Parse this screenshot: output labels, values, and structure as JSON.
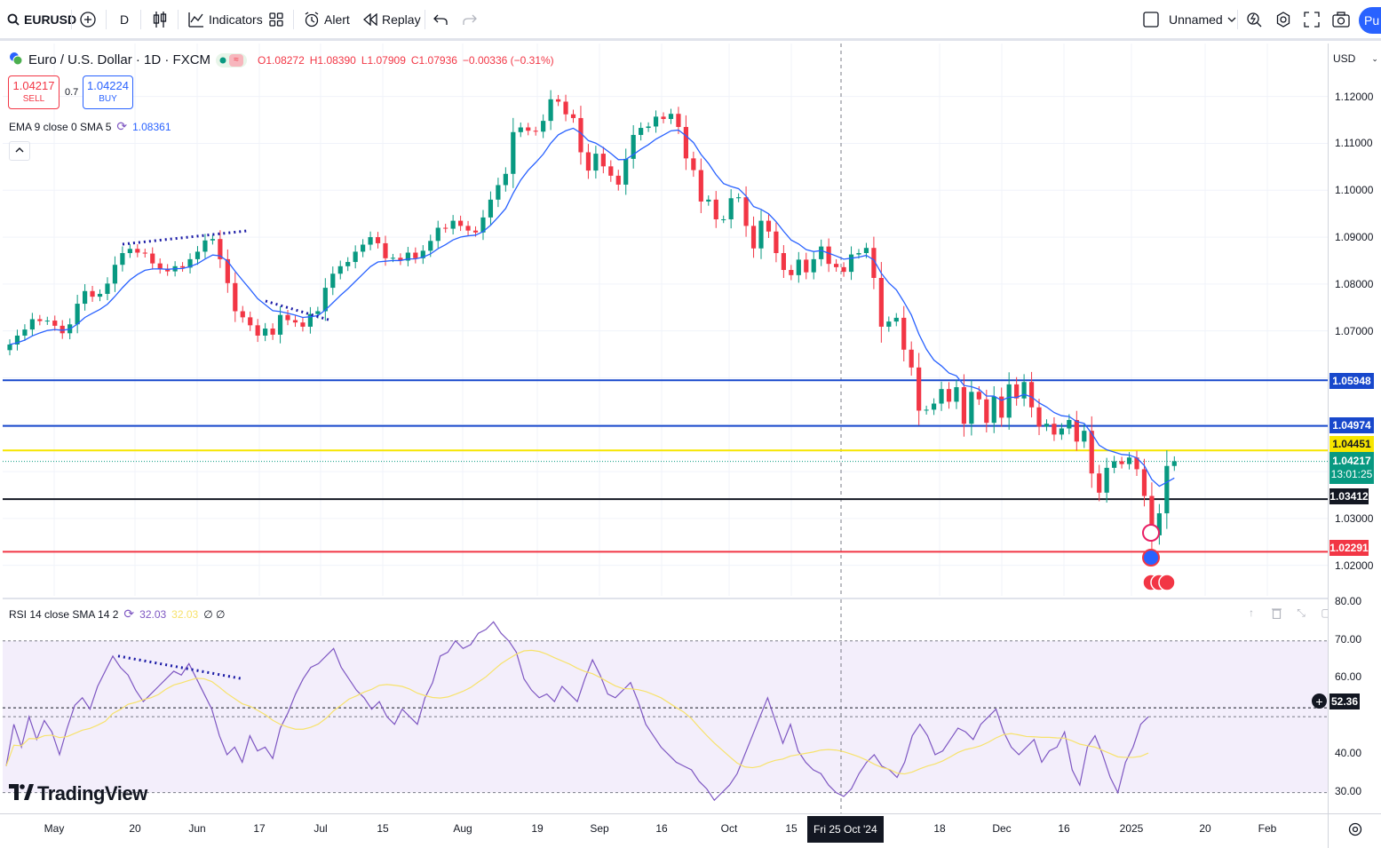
{
  "toolbar": {
    "symbol": "EURUSD",
    "interval": "D",
    "indicators_label": "Indicators",
    "alert_label": "Alert",
    "replay_label": "Replay",
    "layout_name": "Unnamed",
    "publish_label": "Pu"
  },
  "legend": {
    "title": "Euro / U.S. Dollar · 1D · FXCM",
    "open": "O1.08272",
    "high": "H1.08390",
    "low": "L1.07909",
    "close": "C1.07936",
    "change": "−0.00336 (−0.31%)",
    "sell_price": "1.04217",
    "sell_label": "SELL",
    "spread": "0.7",
    "buy_price": "1.04224",
    "buy_label": "BUY",
    "ema_label": "EMA 9 close 0 SMA 5",
    "ema_value": "1.08361",
    "rsi_label": "RSI 14 close SMA 14 2",
    "rsi_value": "32.03",
    "rsi_sma_value": "32.03",
    "rsi_extra": "∅ ∅"
  },
  "currency": "USD",
  "price_axis_labels": [
    "1.12000",
    "1.11000",
    "1.10000",
    "1.09000",
    "1.08000",
    "1.07000",
    "1.03000",
    "1.02000"
  ],
  "rsi_axis_labels": [
    "80.00",
    "70.00",
    "60.00",
    "40.00",
    "30.00"
  ],
  "price_tags": {
    "level1": "1.05948",
    "level2": "1.04974",
    "level3": "1.04451",
    "current": "1.04217",
    "countdown": "13:01:25",
    "level4": "1.03412",
    "level5": "1.02291",
    "rsi_crosshair": "52.36"
  },
  "time_axis": [
    "May",
    "20",
    "Jun",
    "17",
    "Jul",
    "15",
    "Aug",
    "19",
    "Sep",
    "16",
    "Oct",
    "15",
    "18",
    "Dec",
    "16",
    "2025",
    "20",
    "Feb"
  ],
  "crosshair_date": "Fri 25 Oct '24",
  "brand": "TradingView",
  "colors": {
    "up": "#089981",
    "down": "#f23645",
    "ema": "#2962ff",
    "rsi": "#7e57c2",
    "rsi_sma": "#f7e26b",
    "line_blue": "#1848cc",
    "line_yellow": "#f7e600",
    "line_black": "#131722",
    "line_red": "#f23645"
  },
  "chart_data": {
    "type": "candlestick",
    "ylim": [
      1.0135,
      1.1313
    ],
    "levels": [
      1.05948,
      1.04974,
      1.04451,
      1.03412,
      1.02291
    ],
    "close": [
      1.0671,
      1.069,
      1.0703,
      1.0725,
      1.0721,
      1.0722,
      1.0711,
      1.0695,
      1.0714,
      1.0758,
      1.0785,
      1.0773,
      1.0779,
      1.0801,
      1.0841,
      1.0866,
      1.0875,
      1.0867,
      1.0865,
      1.0844,
      1.0833,
      1.0827,
      1.0838,
      1.0835,
      1.0853,
      1.0869,
      1.0893,
      1.0896,
      1.0853,
      1.0802,
      1.0742,
      1.0729,
      1.0712,
      1.069,
      1.0705,
      1.0692,
      1.0734,
      1.0723,
      1.0718,
      1.0709,
      1.0736,
      1.0742,
      1.0792,
      1.0822,
      1.0838,
      1.0847,
      1.0869,
      1.0884,
      1.09,
      1.0887,
      1.0855,
      1.0856,
      1.085,
      1.0867,
      1.0855,
      1.0871,
      1.0892,
      1.092,
      1.0918,
      1.0935,
      1.0924,
      1.0914,
      1.091,
      1.0942,
      1.098,
      1.1011,
      1.1035,
      1.1124,
      1.1134,
      1.1127,
      1.1125,
      1.1148,
      1.1194,
      1.1189,
      1.1162,
      1.1154,
      1.1081,
      1.1042,
      1.1078,
      1.1051,
      1.1031,
      1.1012,
      1.1067,
      1.1118,
      1.1133,
      1.1136,
      1.1157,
      1.1152,
      1.1163,
      1.1135,
      1.1068,
      1.1043,
      1.0976,
      1.098,
      1.0938,
      1.0938,
      1.0983,
      1.0985,
      1.0924,
      1.0876,
      1.0935,
      1.0912,
      1.0866,
      1.083,
      1.0819,
      1.0852,
      1.0825,
      1.0853,
      1.088,
      1.0843,
      1.0836,
      1.0826,
      1.0863,
      1.0866,
      1.0877,
      1.0813,
      1.0709,
      1.072,
      1.0728,
      1.066,
      1.0622,
      1.053,
      1.0532,
      1.0545,
      1.0576,
      1.0549,
      1.058,
      1.0502,
      1.057,
      1.0554,
      1.0504,
      1.056,
      1.0515,
      1.0586,
      1.0556,
      1.0591,
      1.0537,
      1.0496,
      1.0502,
      1.0479,
      1.0492,
      1.051,
      1.0464,
      1.0487,
      1.0396,
      1.0355,
      1.0408,
      1.0422,
      1.0416,
      1.043,
      1.0405,
      1.0348,
      1.0264,
      1.0311,
      1.0412,
      1.0422
    ],
    "rsi": [
      37,
      48,
      42,
      50,
      44,
      49,
      46,
      40,
      47,
      53,
      55,
      52,
      58,
      62,
      66,
      63,
      61,
      57,
      54,
      56,
      58,
      60,
      62,
      61,
      64,
      60,
      56,
      52,
      45,
      40,
      42,
      38,
      45,
      41,
      42,
      39,
      47,
      51,
      56,
      60,
      63,
      64,
      66,
      68,
      63,
      60,
      57,
      55,
      52,
      54,
      50,
      48,
      52,
      50,
      48,
      55,
      59,
      66,
      67,
      70,
      68,
      69,
      72,
      73,
      75,
      72,
      70,
      67,
      60,
      57,
      55,
      56,
      54,
      58,
      56,
      54,
      60,
      65,
      61,
      56,
      55,
      57,
      59,
      54,
      48,
      45,
      42,
      40,
      38,
      37,
      36,
      33,
      31,
      28,
      30,
      32,
      35,
      40,
      45,
      50,
      55,
      49,
      43,
      48,
      41,
      38,
      36,
      35,
      32,
      30,
      29,
      31,
      35,
      38,
      40,
      37,
      36,
      34,
      38,
      45,
      48,
      45,
      40,
      41,
      44,
      47,
      46,
      44,
      48,
      50,
      52,
      46,
      42,
      40,
      42,
      44,
      38,
      41,
      42,
      46,
      36,
      32,
      42,
      45,
      40,
      34,
      30,
      38,
      42,
      48,
      50
    ],
    "rsi_ylim": [
      25,
      80
    ]
  }
}
